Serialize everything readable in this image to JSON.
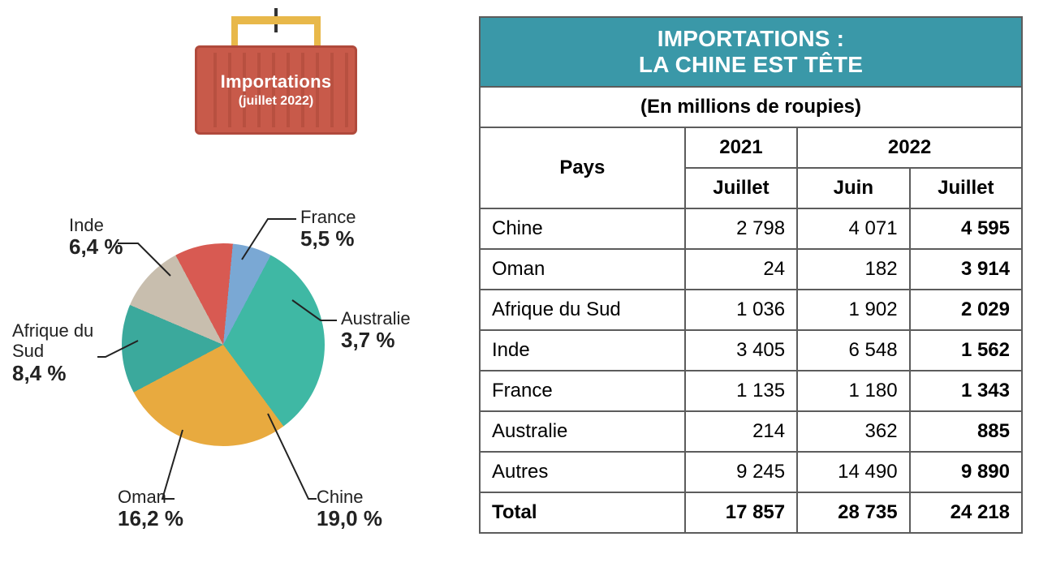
{
  "container": {
    "title": "Importations",
    "subtitle": "(juillet 2022)",
    "box_color": "#c85a4a",
    "box_border": "#b04a3c",
    "hook_color": "#e8b84a"
  },
  "pie": {
    "type": "pie",
    "background_color": "#ffffff",
    "label_fontsize_name": 22,
    "label_fontsize_value": 26,
    "label_color": "#222222",
    "leader_color": "#222222",
    "slices": [
      {
        "label": "France",
        "value_label": "5,5 %",
        "value": 5.5,
        "color": "#d85a52"
      },
      {
        "label": "Australie",
        "value_label": "3,7 %",
        "value": 3.7,
        "color": "#7aa8d4"
      },
      {
        "label": "Chine",
        "value_label": "19,0 %",
        "value": 19.0,
        "color": "#3fb8a4"
      },
      {
        "label": "Oman",
        "value_label": "16,2 %",
        "value": 16.2,
        "color": "#e8aa3f"
      },
      {
        "label": "Afrique du Sud",
        "value_label": "8,4 %",
        "value": 8.4,
        "color": "#3ba99c"
      },
      {
        "label": "Inde",
        "value_label": "6,4 %",
        "value": 6.4,
        "color": "#c8beae"
      }
    ],
    "remainder_color": "#ffffff",
    "start_angle_deg": -28
  },
  "table": {
    "title_line1": "IMPORTATIONS :",
    "title_line2": "LA CHINE EST TÊTE",
    "subtitle": "(En millions de roupies)",
    "header_bg": "#3a98a8",
    "header_fg": "#ffffff",
    "border_color": "#5c5c5c",
    "columns": {
      "country": "Pays",
      "y2021": "2021",
      "y2022": "2022",
      "m_juillet": "Juillet",
      "m_juin": "Juin"
    },
    "rows": [
      {
        "country": "Chine",
        "j2021": "2 798",
        "juin2022": "4 071",
        "juil2022": "4 595"
      },
      {
        "country": "Oman",
        "j2021": "24",
        "juin2022": "182",
        "juil2022": "3 914"
      },
      {
        "country": "Afrique du Sud",
        "j2021": "1 036",
        "juin2022": "1 902",
        "juil2022": "2 029"
      },
      {
        "country": "Inde",
        "j2021": "3 405",
        "juin2022": "6 548",
        "juil2022": "1 562"
      },
      {
        "country": "France",
        "j2021": "1 135",
        "juin2022": "1 180",
        "juil2022": "1 343"
      },
      {
        "country": "Australie",
        "j2021": "214",
        "juin2022": "362",
        "juil2022": "885"
      },
      {
        "country": "Autres",
        "j2021": "9 245",
        "juin2022": "14 490",
        "juil2022": "9 890"
      }
    ],
    "total": {
      "label": "Total",
      "j2021": "17 857",
      "juin2022": "28 735",
      "juil2022": "24 218"
    }
  }
}
